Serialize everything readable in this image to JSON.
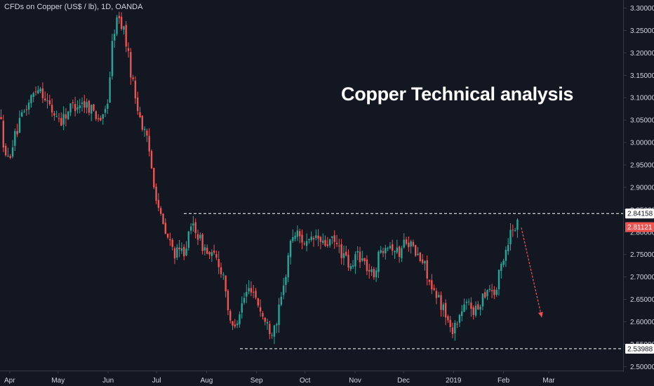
{
  "header": {
    "symbol_title": "CFDs on Copper (US$ / lb), 1D, OANDA",
    "headline": "Copper Technical analysis"
  },
  "colors": {
    "background": "#131722",
    "up_candle": "#26a69a",
    "down_candle": "#ef5350",
    "grid_text": "#d1d4dc",
    "level_line": "#ffffff",
    "last_price_badge": "#ef5350",
    "arrow": "#ef5350"
  },
  "chart_data": {
    "type": "candlestick",
    "title": "CFDs on Copper (US$ / lb), 1D, OANDA",
    "x_ticks": [
      "Apr",
      "May",
      "Jun",
      "Jul",
      "Aug",
      "Sep",
      "Oct",
      "Nov",
      "Dec",
      "2019",
      "Feb",
      "Mar"
    ],
    "y_ticks": [
      "3.30000",
      "3.25000",
      "3.20000",
      "3.15000",
      "3.10000",
      "3.05000",
      "3.00000",
      "2.95000",
      "2.90000",
      "2.85000",
      "2.80000",
      "2.75000",
      "2.70000",
      "2.65000",
      "2.60000",
      "2.55000",
      "2.50000"
    ],
    "ylim": [
      2.488,
      3.318
    ],
    "horizontal_levels": [
      {
        "label": "2.84158",
        "value": 2.84158,
        "style": "dashed"
      },
      {
        "label": "2.53988",
        "value": 2.53988,
        "style": "dashed"
      }
    ],
    "last_price": {
      "label": "2.81121",
      "value": 2.81121
    },
    "annotation_text": "Copper Technical analysis",
    "projection_arrow": {
      "from_value": 2.81,
      "to_value": 2.61,
      "direction": "down"
    },
    "price_path": [
      [
        "2018-03-26",
        3.06
      ],
      [
        "2018-03-30",
        2.95
      ],
      [
        "2018-04-03",
        3.0
      ],
      [
        "2018-04-09",
        3.06
      ],
      [
        "2018-04-13",
        3.09
      ],
      [
        "2018-04-19",
        3.13
      ],
      [
        "2018-04-23",
        3.1
      ],
      [
        "2018-04-27",
        3.07
      ],
      [
        "2018-05-03",
        3.05
      ],
      [
        "2018-05-09",
        3.08
      ],
      [
        "2018-05-15",
        3.09
      ],
      [
        "2018-05-21",
        3.08
      ],
      [
        "2018-05-25",
        3.06
      ],
      [
        "2018-05-29",
        3.05
      ],
      [
        "2018-06-01",
        3.1
      ],
      [
        "2018-06-04",
        3.24
      ],
      [
        "2018-06-07",
        3.28
      ],
      [
        "2018-06-11",
        3.25
      ],
      [
        "2018-06-14",
        3.18
      ],
      [
        "2018-06-18",
        3.1
      ],
      [
        "2018-06-22",
        3.04
      ],
      [
        "2018-06-26",
        2.99
      ],
      [
        "2018-06-29",
        2.92
      ],
      [
        "2018-07-03",
        2.84
      ],
      [
        "2018-07-06",
        2.8
      ],
      [
        "2018-07-10",
        2.77
      ],
      [
        "2018-07-13",
        2.75
      ],
      [
        "2018-07-18",
        2.76
      ],
      [
        "2018-07-24",
        2.82
      ],
      [
        "2018-07-28",
        2.78
      ],
      [
        "2018-08-02",
        2.75
      ],
      [
        "2018-08-07",
        2.74
      ],
      [
        "2018-08-12",
        2.7
      ],
      [
        "2018-08-16",
        2.58
      ],
      [
        "2018-08-20",
        2.61
      ],
      [
        "2018-08-25",
        2.66
      ],
      [
        "2018-08-29",
        2.68
      ],
      [
        "2018-09-03",
        2.63
      ],
      [
        "2018-09-06",
        2.6
      ],
      [
        "2018-09-10",
        2.58
      ],
      [
        "2018-09-14",
        2.61
      ],
      [
        "2018-09-18",
        2.68
      ],
      [
        "2018-09-21",
        2.76
      ],
      [
        "2018-09-24",
        2.8
      ],
      [
        "2018-09-28",
        2.79
      ],
      [
        "2018-10-03",
        2.77
      ],
      [
        "2018-10-08",
        2.79
      ],
      [
        "2018-10-12",
        2.77
      ],
      [
        "2018-10-17",
        2.78
      ],
      [
        "2018-10-21",
        2.77
      ],
      [
        "2018-10-26",
        2.74
      ],
      [
        "2018-10-30",
        2.71
      ],
      [
        "2018-11-02",
        2.76
      ],
      [
        "2018-11-07",
        2.73
      ],
      [
        "2018-11-12",
        2.7
      ],
      [
        "2018-11-16",
        2.75
      ],
      [
        "2018-11-20",
        2.78
      ],
      [
        "2018-11-24",
        2.77
      ],
      [
        "2018-11-28",
        2.75
      ],
      [
        "2018-12-03",
        2.79
      ],
      [
        "2018-12-07",
        2.76
      ],
      [
        "2018-12-11",
        2.74
      ],
      [
        "2018-12-15",
        2.72
      ],
      [
        "2018-12-19",
        2.66
      ],
      [
        "2018-12-23",
        2.65
      ],
      [
        "2018-12-27",
        2.62
      ],
      [
        "2018-12-30",
        2.58
      ],
      [
        "2019-01-03",
        2.6
      ],
      [
        "2019-01-07",
        2.63
      ],
      [
        "2019-01-11",
        2.64
      ],
      [
        "2019-01-15",
        2.62
      ],
      [
        "2019-01-19",
        2.66
      ],
      [
        "2019-01-23",
        2.68
      ],
      [
        "2019-01-27",
        2.66
      ],
      [
        "2019-01-30",
        2.72
      ],
      [
        "2019-02-03",
        2.77
      ],
      [
        "2019-02-06",
        2.81
      ],
      [
        "2019-02-09",
        2.82
      ],
      [
        "2019-02-11",
        2.81
      ]
    ]
  }
}
